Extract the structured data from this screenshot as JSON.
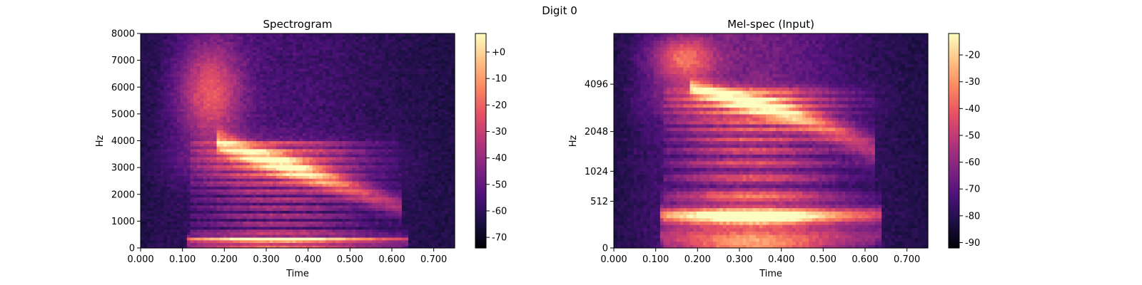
{
  "figure": {
    "suptitle": "Digit 0"
  },
  "chart_data": [
    {
      "type": "heatmap",
      "title": "Spectrogram",
      "xlabel": "Time",
      "ylabel": "Hz",
      "x_ticks": [
        "0.000",
        "0.100",
        "0.200",
        "0.300",
        "0.400",
        "0.500",
        "0.600",
        "0.700"
      ],
      "y_ticks": [
        "0",
        "1000",
        "2000",
        "3000",
        "4000",
        "5000",
        "6000",
        "7000",
        "8000"
      ],
      "xlim": [
        0,
        0.75
      ],
      "ylim": [
        0,
        8000
      ],
      "y_scale": "linear",
      "colorbar": {
        "ticks": [
          "+0",
          "-10",
          "-20",
          "-30",
          "-40",
          "-50",
          "-60",
          "-70"
        ],
        "range": [
          -74,
          7
        ]
      },
      "colormap": "magma",
      "grid": false
    },
    {
      "type": "heatmap",
      "title": "Mel-spec (Input)",
      "xlabel": "Time",
      "ylabel": "Hz",
      "x_ticks": [
        "0.000",
        "0.100",
        "0.200",
        "0.300",
        "0.400",
        "0.500",
        "0.600",
        "0.700"
      ],
      "y_ticks": [
        "0",
        "512",
        "1024",
        "2048",
        "4096"
      ],
      "xlim": [
        0,
        0.75
      ],
      "ylim": [
        0,
        8000
      ],
      "y_scale": "mel",
      "colorbar": {
        "ticks": [
          "-20",
          "-30",
          "-40",
          "-50",
          "-60",
          "-70",
          "-80",
          "-90"
        ],
        "range": [
          -92,
          -12
        ]
      },
      "colormap": "magma",
      "grid": false
    }
  ]
}
